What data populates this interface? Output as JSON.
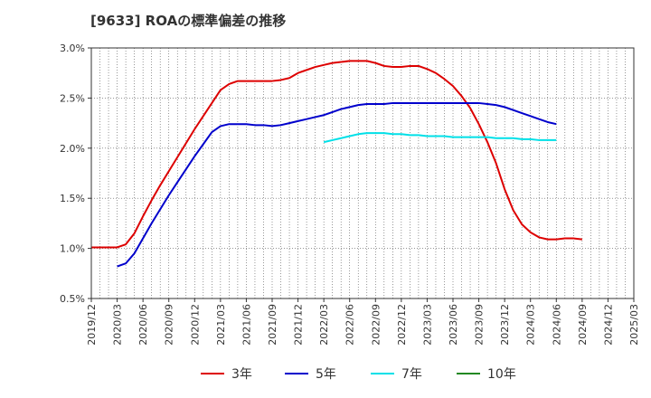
{
  "chart_data": {
    "type": "line",
    "title": "[9633]  ROAの標準偏差の推移",
    "xlabel": "",
    "ylabel": "",
    "ylim": [
      0.5,
      3.0
    ],
    "yticks": [
      "0.5%",
      "1.0%",
      "1.5%",
      "2.0%",
      "2.5%",
      "3.0%"
    ],
    "ytick_values": [
      0.5,
      1.0,
      1.5,
      2.0,
      2.5,
      3.0
    ],
    "x_start": "2019/12",
    "x_end": "2025/03",
    "xticks": [
      "2019/12",
      "2020/03",
      "2020/06",
      "2020/09",
      "2020/12",
      "2021/03",
      "2021/06",
      "2021/09",
      "2021/12",
      "2022/03",
      "2022/06",
      "2022/09",
      "2022/12",
      "2023/03",
      "2023/06",
      "2023/09",
      "2023/12",
      "2024/03",
      "2024/06",
      "2024/09",
      "2024/12",
      "2025/03"
    ],
    "grid": true,
    "legend_position": "bottom",
    "series": [
      {
        "name": "3年",
        "color": "#dd0000",
        "start": "2019/12",
        "values": [
          1.01,
          1.01,
          1.01,
          1.01,
          1.04,
          1.15,
          1.32,
          1.48,
          1.63,
          1.77,
          1.91,
          2.05,
          2.19,
          2.32,
          2.45,
          2.58,
          2.64,
          2.67,
          2.67,
          2.67,
          2.67,
          2.67,
          2.68,
          2.7,
          2.75,
          2.78,
          2.81,
          2.83,
          2.85,
          2.86,
          2.87,
          2.87,
          2.87,
          2.85,
          2.82,
          2.81,
          2.81,
          2.82,
          2.82,
          2.79,
          2.75,
          2.69,
          2.62,
          2.52,
          2.4,
          2.24,
          2.06,
          1.85,
          1.59,
          1.38,
          1.24,
          1.16,
          1.11,
          1.09,
          1.09,
          1.1,
          1.1,
          1.09
        ]
      },
      {
        "name": "5年",
        "color": "#0000cc",
        "start": "2020/03",
        "values": [
          0.82,
          0.85,
          0.95,
          1.1,
          1.25,
          1.39,
          1.53,
          1.66,
          1.79,
          1.92,
          2.04,
          2.16,
          2.22,
          2.24,
          2.24,
          2.24,
          2.23,
          2.23,
          2.22,
          2.23,
          2.25,
          2.27,
          2.29,
          2.31,
          2.33,
          2.36,
          2.39,
          2.41,
          2.43,
          2.44,
          2.44,
          2.44,
          2.45,
          2.45,
          2.45,
          2.45,
          2.45,
          2.45,
          2.45,
          2.45,
          2.45,
          2.45,
          2.45,
          2.44,
          2.43,
          2.41,
          2.38,
          2.35,
          2.32,
          2.29,
          2.26,
          2.24
        ]
      },
      {
        "name": "7年",
        "color": "#00e0e8",
        "start": "2022/03",
        "values": [
          2.06,
          2.08,
          2.1,
          2.12,
          2.14,
          2.15,
          2.15,
          2.15,
          2.14,
          2.14,
          2.13,
          2.13,
          2.12,
          2.12,
          2.12,
          2.11,
          2.11,
          2.11,
          2.11,
          2.11,
          2.1,
          2.1,
          2.1,
          2.09,
          2.09,
          2.08,
          2.08,
          2.08
        ]
      },
      {
        "name": "10年",
        "color": "#228822",
        "start": "2025/03",
        "values": []
      }
    ]
  }
}
